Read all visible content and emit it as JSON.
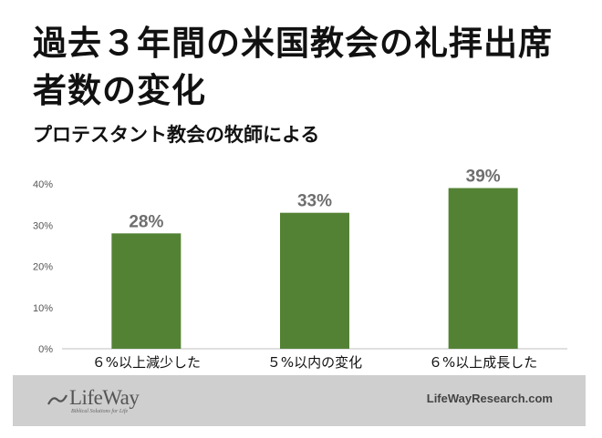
{
  "title": "過去３年間の米国教会の礼拝出席者数の変化",
  "subtitle": "プロテスタント教会の牧師による",
  "chart_data": {
    "type": "bar",
    "categories": [
      "６%以上減少した",
      "５%以内の変化",
      "６%以上成長した"
    ],
    "values": [
      28,
      33,
      39
    ],
    "data_labels": [
      "28%",
      "33%",
      "39%"
    ],
    "ylim": [
      0,
      40
    ],
    "yticks": [
      "0%",
      "10%",
      "20%",
      "30%",
      "40%"
    ],
    "grid": false,
    "bar_color": "#548235"
  },
  "footer": {
    "logo_text": "LifeWay",
    "tagline": "Biblical Solutions for Life",
    "website": "LifeWayResearch.com",
    "background": "#cfcfcf"
  }
}
